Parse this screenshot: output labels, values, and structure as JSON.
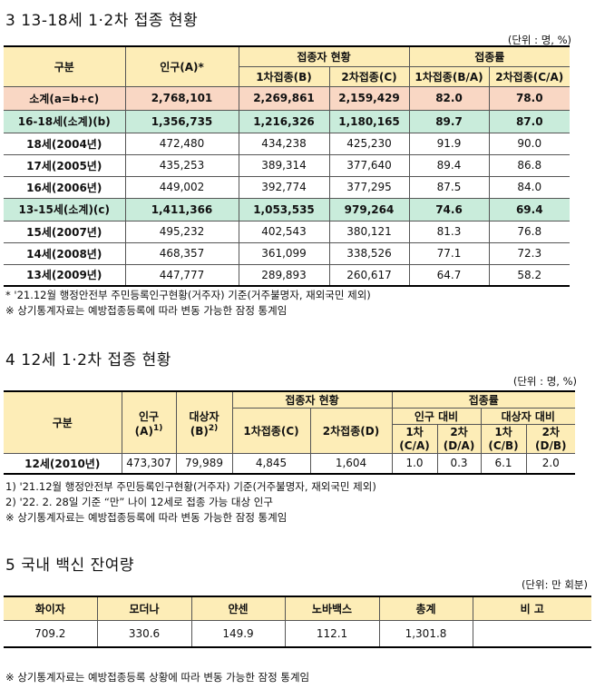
{
  "s3": {
    "title": "3  13-18세 1·2차 접종 현황",
    "unit": "(단위 : 명, %)",
    "headers": {
      "category": "구분",
      "population": "인구(A)*",
      "vaccinated_group": "접종자 현황",
      "first": "1차접종(B)",
      "second": "2차접종(C)",
      "rate_group": "접종률",
      "rate_first": "1차접종(B/A)",
      "rate_second": "2차접종(C/A)"
    },
    "rows": [
      {
        "label": "소계(a=b+c)",
        "pop": "2,768,101",
        "d1": "2,269,861",
        "d2": "2,159,429",
        "r1": "82.0",
        "r2": "78.0"
      },
      {
        "label": "16-18세(소계)(b)",
        "pop": "1,356,735",
        "d1": "1,216,326",
        "d2": "1,180,165",
        "r1": "89.7",
        "r2": "87.0"
      },
      {
        "label": "18세(2004년)",
        "pop": "472,480",
        "d1": "434,238",
        "d2": "425,230",
        "r1": "91.9",
        "r2": "90.0"
      },
      {
        "label": "17세(2005년)",
        "pop": "435,253",
        "d1": "389,314",
        "d2": "377,640",
        "r1": "89.4",
        "r2": "86.8"
      },
      {
        "label": "16세(2006년)",
        "pop": "449,002",
        "d1": "392,774",
        "d2": "377,295",
        "r1": "87.5",
        "r2": "84.0"
      },
      {
        "label": "13-15세(소계)(c)",
        "pop": "1,411,366",
        "d1": "1,053,535",
        "d2": "979,264",
        "r1": "74.6",
        "r2": "69.4"
      },
      {
        "label": "15세(2007년)",
        "pop": "495,232",
        "d1": "402,543",
        "d2": "380,121",
        "r1": "81.3",
        "r2": "76.8"
      },
      {
        "label": "14세(2008년)",
        "pop": "468,357",
        "d1": "361,099",
        "d2": "338,526",
        "r1": "77.1",
        "r2": "72.3"
      },
      {
        "label": "13세(2009년)",
        "pop": "447,777",
        "d1": "289,893",
        "d2": "260,617",
        "r1": "64.7",
        "r2": "58.2"
      }
    ],
    "notes": [
      " * '21.12월 행정안전부 주민등록인구현황(거주자) 기준(거주불명자, 재외국민 제외)",
      "※ 상기통계자료는 예방접종등록에 따라 변동 가능한 잠정 통계임"
    ]
  },
  "s4": {
    "title": "4  12세 1·2차 접종 현황",
    "unit": "(단위 : 명, %)",
    "headers": {
      "category": "구분",
      "population": "인구",
      "population_sub": "(A)",
      "population_sup": "1)",
      "target": "대상자",
      "target_sub": "(B)",
      "target_sup": "2)",
      "vaccinated_group": "접종자 현황",
      "first": "1차접종(C)",
      "second": "2차접종(D)",
      "rate_group": "접종률",
      "pop_ratio": "인구 대비",
      "target_ratio": "대상자 대비",
      "c1_top": "1차",
      "c1_bot": "(C/A)",
      "c2_top": "2차",
      "c2_bot": "(D/A)",
      "c3_top": "1차",
      "c3_bot": "(C/B)",
      "c4_top": "2차",
      "c4_bot": "(D/B)"
    },
    "row": {
      "label": "12세(2010년)",
      "pop": "473,307",
      "target": "79,989",
      "d1": "4,845",
      "d2": "1,604",
      "r1": "1.0",
      "r2": "0.3",
      "r3": "6.1",
      "r4": "2.0"
    },
    "notes": [
      "1) '21.12월 행정안전부 주민등록인구현황(거주자) 기준(거주불명자, 재외국민 제외)",
      "2) '22. 2. 28일 기준 “만” 나이 12세로 접종 가능 대상 인구",
      "※ 상기통계자료는 예방접종등록에 따라 변동 가능한 잠정 통계임"
    ]
  },
  "s5": {
    "title": "5  국내 백신 잔여량",
    "unit": "(단위: 만 회분)",
    "headers": [
      "화이자",
      "모더나",
      "얀센",
      "노바백스",
      "총계",
      "비 고"
    ],
    "values": [
      "709.2",
      "330.6",
      "149.9",
      "112.1",
      "1,301.8",
      ""
    ],
    "note": "※ 상기통계자료는 예방접종등록 상황에 따라 변동 가능한 잠정 통계임"
  }
}
